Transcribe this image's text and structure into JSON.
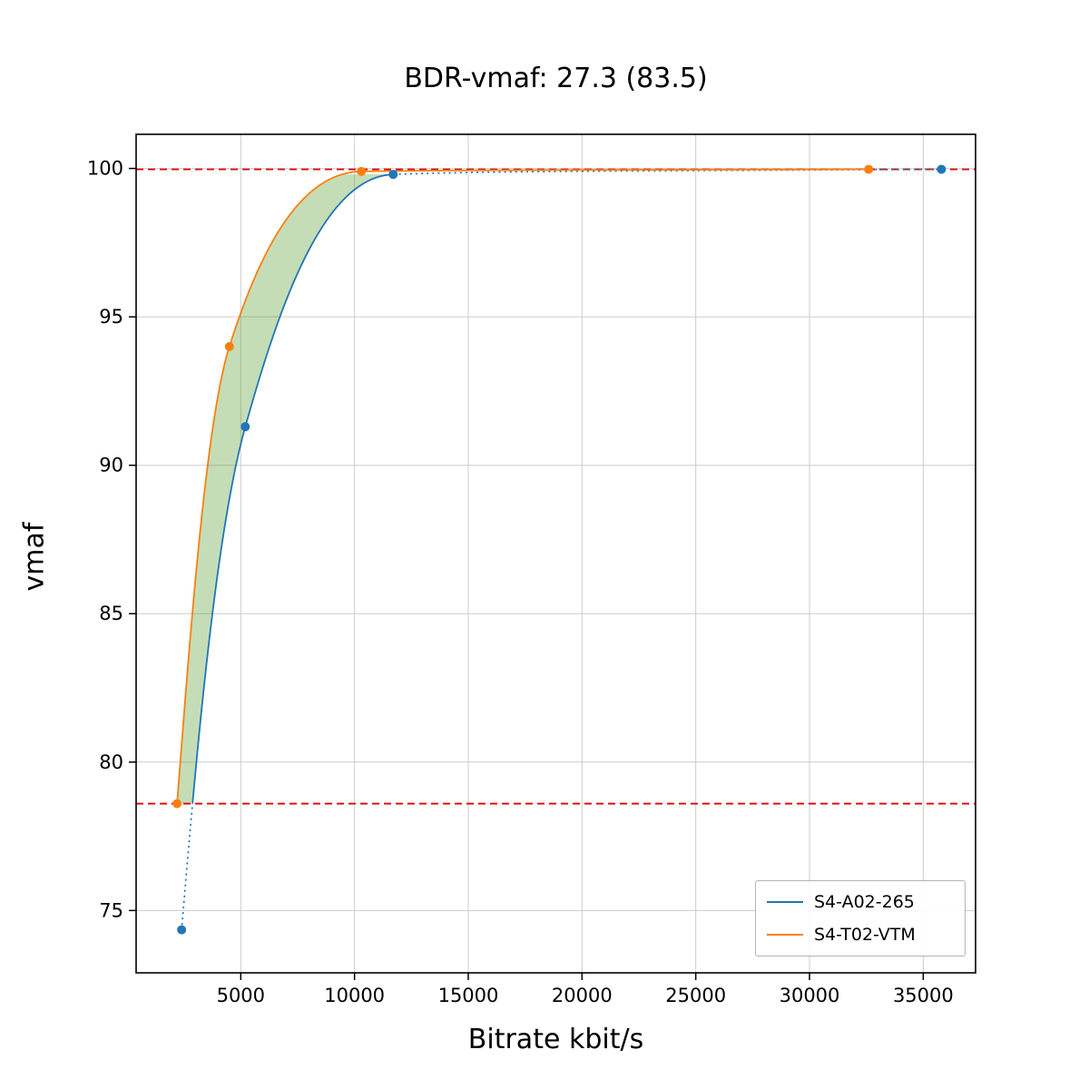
{
  "chart_data": {
    "type": "line",
    "title": "BDR-vmaf: 27.3 (83.5)",
    "xlabel": "Bitrate kbit/s",
    "ylabel": "vmaf",
    "xlim": [
      400,
      37300
    ],
    "ylim": [
      72.9,
      101.15
    ],
    "xticks": [
      5000,
      10000,
      15000,
      20000,
      25000,
      30000,
      35000
    ],
    "yticks": [
      75,
      80,
      85,
      90,
      95,
      100
    ],
    "grid": true,
    "grid_color": "#cccccc",
    "legend_position": "lower right",
    "series": [
      {
        "name": "S4-A02-265",
        "color": "#1f77b4",
        "points": [
          [
            2400,
            74.35
          ],
          [
            5200,
            91.3
          ],
          [
            11700,
            99.8
          ],
          [
            35800,
            99.97
          ]
        ],
        "dotted_below_q": 78.6,
        "dotted_after_x": 11700
      },
      {
        "name": "S4-T02-VTM",
        "color": "#ff7f0e",
        "points": [
          [
            2200,
            78.6
          ],
          [
            4500,
            94.0
          ],
          [
            10300,
            99.9
          ],
          [
            32600,
            99.97
          ]
        ],
        "dotted_below_q": null,
        "dotted_after_x": null
      }
    ],
    "hlines": [
      {
        "y": 99.97,
        "color": "#e00000",
        "style": "dashed"
      },
      {
        "y": 78.6,
        "color": "#e00000",
        "style": "dashed"
      }
    ],
    "fill_between": {
      "between": [
        "S4-T02-VTM",
        "S4-A02-265"
      ],
      "color": "#5a9e32",
      "opacity": 0.35,
      "q_range": [
        78.6,
        99.8
      ]
    }
  }
}
